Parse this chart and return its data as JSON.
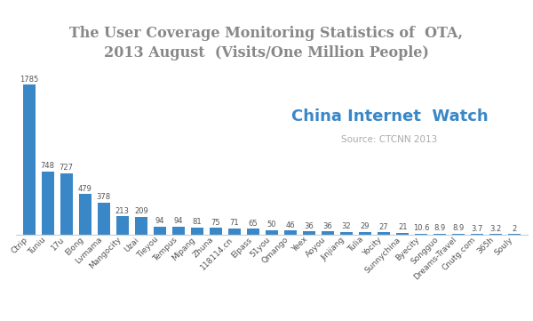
{
  "title_line1": "The User Coverage Monitoring Statistics of  OTA,",
  "title_line2": "2013 August  (Visits/One Million People)",
  "categories": [
    "Ctrip",
    "Tuniu",
    "17u",
    "Elong",
    "Lvmama",
    "Mangocity",
    "Uzai",
    "Tieyou",
    "Tempus",
    "Mipang",
    "Zhuna",
    "118114.cn",
    "Elpass",
    "51you",
    "Qmango",
    "Yeex",
    "Aoyou",
    "Jinjiang",
    "Tulia",
    "Yocity",
    "Sunnychina",
    "Byecity",
    "Songguo",
    "Dreams-Travel",
    "Cnutg.com",
    "365h",
    "Souly"
  ],
  "values": [
    1785,
    748,
    727,
    479,
    378,
    213,
    209,
    94,
    94,
    81,
    75,
    71,
    65,
    50,
    46,
    36,
    36,
    32,
    29,
    27,
    21,
    10.6,
    8.9,
    8.9,
    3.7,
    3.2,
    2
  ],
  "bar_color": "#3a87c8",
  "title_color": "#888888",
  "annotation_color": "#555555",
  "watermark_text": "China Internet  Watch",
  "watermark_color": "#3a87c8",
  "source_text": "Source: CTCNN 2013",
  "source_color": "#aaaaaa",
  "background_color": "#ffffff",
  "ylim": [
    0,
    1950
  ],
  "title_fontsize": 11.5,
  "annotation_fontsize": 6,
  "xlabel_fontsize": 6.5,
  "watermark_fontsize": 13,
  "source_fontsize": 7.5
}
